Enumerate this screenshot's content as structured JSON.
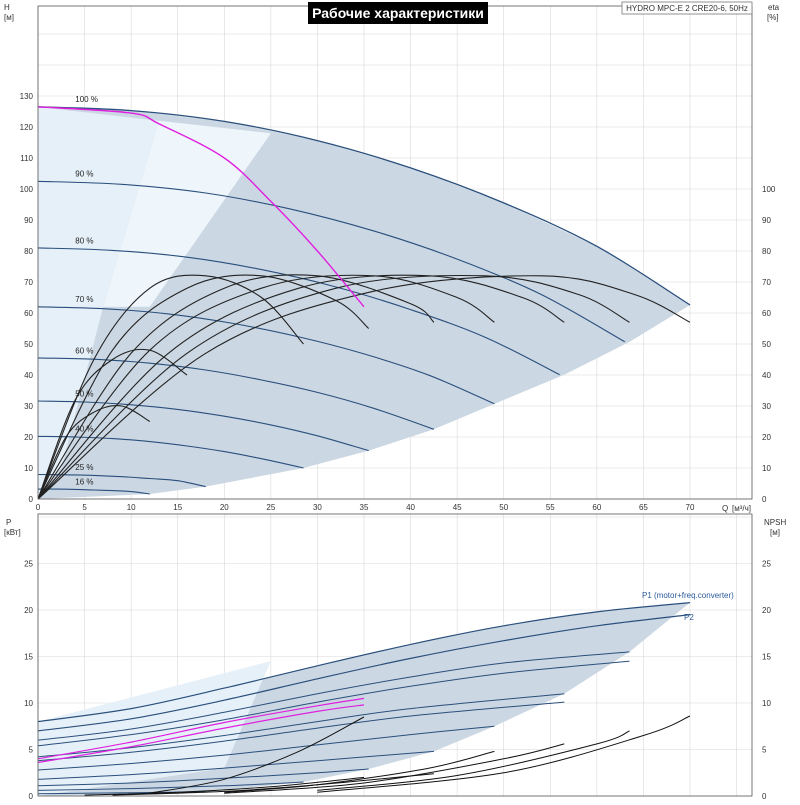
{
  "title": "Рабочие характеристики",
  "subtitle": "HYDRO MPC-E 2 CRE20-6, 50Hz",
  "colors": {
    "pump_curve": "#2a4f7c",
    "envelope_fill": "#cbd7e3",
    "low_flow_fill": "#e6f0f8",
    "efficiency": "#222222",
    "highlight": "#e020e0",
    "p1_label": "#2a5a9a"
  },
  "top_chart": {
    "ylabel": "H",
    "yunit": "[м]",
    "y2label": "eta",
    "y2unit": "[%]",
    "xlabel": "Q",
    "xunit": "[м³/ч]",
    "xticks": [
      "0",
      "5",
      "10",
      "15",
      "20",
      "25",
      "30",
      "35",
      "40",
      "45",
      "50",
      "55",
      "60",
      "65",
      "70"
    ],
    "yticks": [
      "0",
      "10",
      "20",
      "30",
      "40",
      "50",
      "60",
      "70",
      "80",
      "90",
      "100",
      "110",
      "120",
      "130"
    ],
    "y2ticks": [
      "0",
      "10",
      "20",
      "30",
      "40",
      "50",
      "60",
      "70",
      "80",
      "90",
      "100"
    ]
  },
  "bottom_chart": {
    "ylabel": "P",
    "yunit": "[кВт]",
    "y2label": "NPSH",
    "y2unit": "[м]",
    "yticks": [
      "0",
      "5",
      "10",
      "15",
      "20",
      "25"
    ],
    "y2ticks": [
      "0",
      "5",
      "10",
      "15",
      "20",
      "25"
    ],
    "p1_label": "P1 (motor+freq.converter)",
    "p2_label": "P2"
  },
  "chart_data": [
    {
      "type": "line",
      "title": "Рабочие характеристики",
      "xlabel": "Q [м³/ч]",
      "ylabel": "H [м]",
      "y2label": "eta [%]",
      "xlim": [
        0,
        75
      ],
      "ylim": [
        0,
        140
      ],
      "y2lim": [
        0,
        140
      ],
      "grid": true,
      "series": [
        {
          "name": "100 %",
          "x": [
            0,
            10,
            20,
            30,
            40,
            50,
            60,
            70
          ],
          "y": [
            126.5,
            125.3,
            121.8,
            115.6,
            106.8,
            95.5,
            81.5,
            62.6
          ]
        },
        {
          "name": "90 %",
          "x": [
            0,
            9,
            18,
            27,
            36,
            45,
            54,
            63
          ],
          "y": [
            102.5,
            101.5,
            98.7,
            93.6,
            86.5,
            77.4,
            66.0,
            50.7
          ]
        },
        {
          "name": "80 %",
          "x": [
            0,
            8,
            16,
            24,
            32,
            40,
            48,
            56
          ],
          "y": [
            81.0,
            80.2,
            78.0,
            74.0,
            68.4,
            61.1,
            52.2,
            40.1
          ]
        },
        {
          "name": "70 %",
          "x": [
            0,
            7,
            14,
            21,
            28,
            35,
            42,
            49
          ],
          "y": [
            62.0,
            61.4,
            59.7,
            56.6,
            52.3,
            46.8,
            39.9,
            30.7
          ]
        },
        {
          "name": "60 %",
          "x": [
            0,
            6,
            12,
            18,
            24,
            30,
            36,
            42.5
          ],
          "y": [
            45.5,
            45.1,
            43.8,
            41.6,
            38.4,
            34.4,
            29.3,
            22.5
          ]
        },
        {
          "name": "50 %",
          "x": [
            0,
            5,
            10,
            15,
            20,
            25,
            30,
            35.5
          ],
          "y": [
            31.6,
            31.3,
            30.4,
            28.9,
            26.7,
            23.9,
            20.4,
            15.6
          ]
        },
        {
          "name": "40 %",
          "x": [
            0,
            4,
            8,
            12,
            16,
            20,
            24,
            28.5
          ],
          "y": [
            20.2,
            20.0,
            19.5,
            18.5,
            17.1,
            15.3,
            13.0,
            10.0
          ]
        },
        {
          "name": "25 %",
          "x": [
            0,
            3,
            6,
            9,
            12,
            15,
            18
          ],
          "y": [
            7.9,
            7.8,
            7.6,
            7.2,
            6.6,
            5.9,
            4.0
          ]
        },
        {
          "name": "16 %",
          "x": [
            0,
            2,
            4,
            6,
            8,
            10,
            12
          ],
          "y": [
            3.2,
            3.2,
            3.1,
            2.9,
            2.7,
            2.4,
            1.6
          ]
        }
      ],
      "efficiency_series": [
        {
          "x": [
            0,
            3,
            6,
            9,
            12
          ],
          "y": [
            0,
            20,
            28,
            30,
            25
          ]
        },
        {
          "x": [
            0,
            4,
            8,
            12,
            16
          ],
          "y": [
            0,
            32,
            45,
            48,
            40
          ]
        },
        {
          "x": [
            0,
            6,
            12,
            18,
            24,
            28.5
          ],
          "y": [
            0,
            45,
            68,
            72,
            65,
            50
          ]
        },
        {
          "x": [
            0,
            8,
            16,
            24,
            32,
            35.5
          ],
          "y": [
            0,
            48,
            68,
            72,
            64,
            55
          ]
        },
        {
          "x": [
            0,
            10,
            20,
            30,
            40,
            42.5
          ],
          "y": [
            0,
            47,
            68,
            72,
            63,
            57
          ]
        },
        {
          "x": [
            0,
            12,
            24,
            36,
            45,
            49
          ],
          "y": [
            0,
            48,
            68,
            72,
            65,
            57
          ]
        },
        {
          "x": [
            0,
            14,
            28,
            42,
            52,
            56.5
          ],
          "y": [
            0,
            47,
            68,
            72,
            65,
            57
          ]
        },
        {
          "x": [
            0,
            16,
            32,
            48,
            58,
            63.5
          ],
          "y": [
            0,
            47,
            68,
            72,
            66,
            57
          ]
        },
        {
          "x": [
            0,
            18,
            36,
            54,
            64,
            70
          ],
          "y": [
            0,
            47,
            67,
            72,
            66,
            57
          ]
        }
      ],
      "highlight_series": {
        "x": [
          0,
          10,
          13,
          20,
          25,
          30,
          35
        ],
        "y": [
          126.5,
          124.5,
          121.0,
          110.0,
          96.0,
          80.0,
          62.0
        ]
      }
    },
    {
      "type": "line",
      "xlabel": "Q [м³/ч]",
      "ylabel": "P [кВт]",
      "y2label": "NPSH [м]",
      "xlim": [
        0,
        75
      ],
      "ylim": [
        0,
        28
      ],
      "grid": true,
      "series": [
        {
          "name": "P1 (motor+freq.converter)",
          "x": [
            0,
            10,
            20,
            30,
            40,
            50,
            60,
            70
          ],
          "y": [
            8.0,
            9.4,
            11.6,
            14.0,
            16.3,
            18.3,
            19.8,
            20.8
          ]
        },
        {
          "name": "P2",
          "x": [
            0,
            10,
            20,
            30,
            40,
            50,
            60,
            70
          ],
          "y": [
            7.0,
            8.3,
            10.3,
            12.6,
            14.8,
            16.7,
            18.3,
            19.5
          ]
        }
      ],
      "partial_speed_power": [
        {
          "x": [
            0,
            10,
            20,
            30,
            40,
            50,
            63.5
          ],
          "y": [
            6.0,
            7.2,
            9.0,
            11.0,
            12.8,
            14.3,
            15.5
          ]
        },
        {
          "x": [
            0,
            10,
            20,
            30,
            40,
            50,
            63.5
          ],
          "y": [
            5.4,
            6.6,
            8.2,
            10.1,
            11.8,
            13.2,
            14.5
          ]
        },
        {
          "x": [
            0,
            10,
            20,
            30,
            40,
            56.5
          ],
          "y": [
            4.2,
            5.2,
            6.5,
            8.0,
            9.4,
            11.0
          ]
        },
        {
          "x": [
            0,
            10,
            20,
            30,
            40,
            56.5
          ],
          "y": [
            3.8,
            4.7,
            5.9,
            7.3,
            8.6,
            10.1
          ]
        },
        {
          "x": [
            0,
            10,
            20,
            30,
            40,
            49
          ],
          "y": [
            2.8,
            3.5,
            4.4,
            5.5,
            6.6,
            7.5
          ]
        },
        {
          "x": [
            0,
            10,
            20,
            30,
            42.5
          ],
          "y": [
            1.8,
            2.3,
            3.0,
            3.8,
            4.8
          ]
        },
        {
          "x": [
            0,
            10,
            20,
            30,
            35.5
          ],
          "y": [
            1.1,
            1.4,
            1.9,
            2.5,
            2.9
          ]
        },
        {
          "x": [
            0,
            10,
            20,
            28.5
          ],
          "y": [
            0.6,
            0.8,
            1.1,
            1.5
          ]
        },
        {
          "x": [
            0,
            10,
            18
          ],
          "y": [
            0.25,
            0.35,
            0.45
          ]
        }
      ],
      "highlight_series": [
        {
          "x": [
            0,
            10,
            20,
            30,
            35
          ],
          "y": [
            4.0,
            5.8,
            7.9,
            9.7,
            10.5
          ]
        },
        {
          "x": [
            0,
            10,
            20,
            30,
            35
          ],
          "y": [
            3.6,
            5.3,
            7.3,
            9.1,
            9.8
          ]
        }
      ],
      "npsh_series": [
        {
          "x": [
            12,
            20,
            28,
            35
          ],
          "y": [
            0.3,
            1.8,
            4.8,
            8.5
          ]
        },
        {
          "x": [
            20,
            30,
            42,
            49
          ],
          "y": [
            0.4,
            1.2,
            3.0,
            4.8
          ]
        },
        {
          "x": [
            20,
            35,
            50,
            56.5
          ],
          "y": [
            0.3,
            1.4,
            4.0,
            5.6
          ]
        },
        {
          "x": [
            30,
            45,
            60,
            63.5
          ],
          "y": [
            0.6,
            2.2,
            5.6,
            7.0
          ]
        },
        {
          "x": [
            30,
            50,
            65,
            70
          ],
          "y": [
            0.4,
            2.5,
            6.5,
            8.6
          ]
        },
        {
          "x": [
            5,
            15,
            25,
            35
          ],
          "y": [
            0.1,
            0.4,
            1.0,
            2.0
          ]
        },
        {
          "x": [
            8,
            20,
            30,
            42.5
          ],
          "y": [
            0.1,
            0.5,
            1.2,
            2.4
          ]
        }
      ]
    }
  ]
}
